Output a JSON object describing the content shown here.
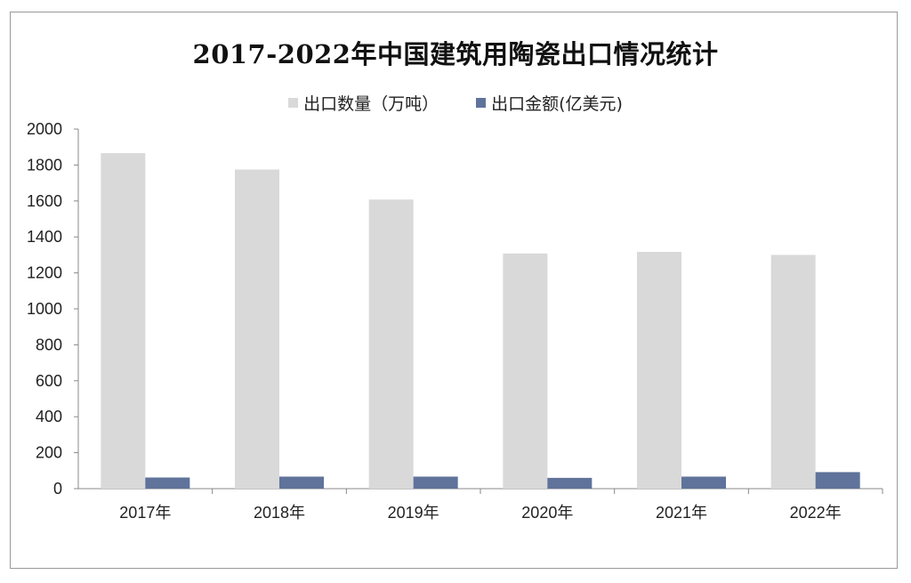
{
  "chart_data": {
    "type": "bar",
    "title": "2017-2022年中国建筑用陶瓷出口情况统计",
    "categories": [
      "2017年",
      "2018年",
      "2019年",
      "2020年",
      "2021年",
      "2022年"
    ],
    "series": [
      {
        "name": "出口数量（万吨）",
        "color": "#d9d9d9",
        "values": [
          1866,
          1775,
          1608,
          1308,
          1317,
          1300
        ]
      },
      {
        "name": "出口金额(亿美元)",
        "color": "#5f739b",
        "values": [
          62,
          67,
          67,
          60,
          67,
          92
        ]
      }
    ],
    "yticks": [
      "0",
      "200",
      "400",
      "600",
      "800",
      "1000",
      "1200",
      "1400",
      "1600",
      "1800",
      "2000"
    ],
    "ylim": [
      0,
      2000
    ],
    "grid": false,
    "legend_position": "top"
  }
}
